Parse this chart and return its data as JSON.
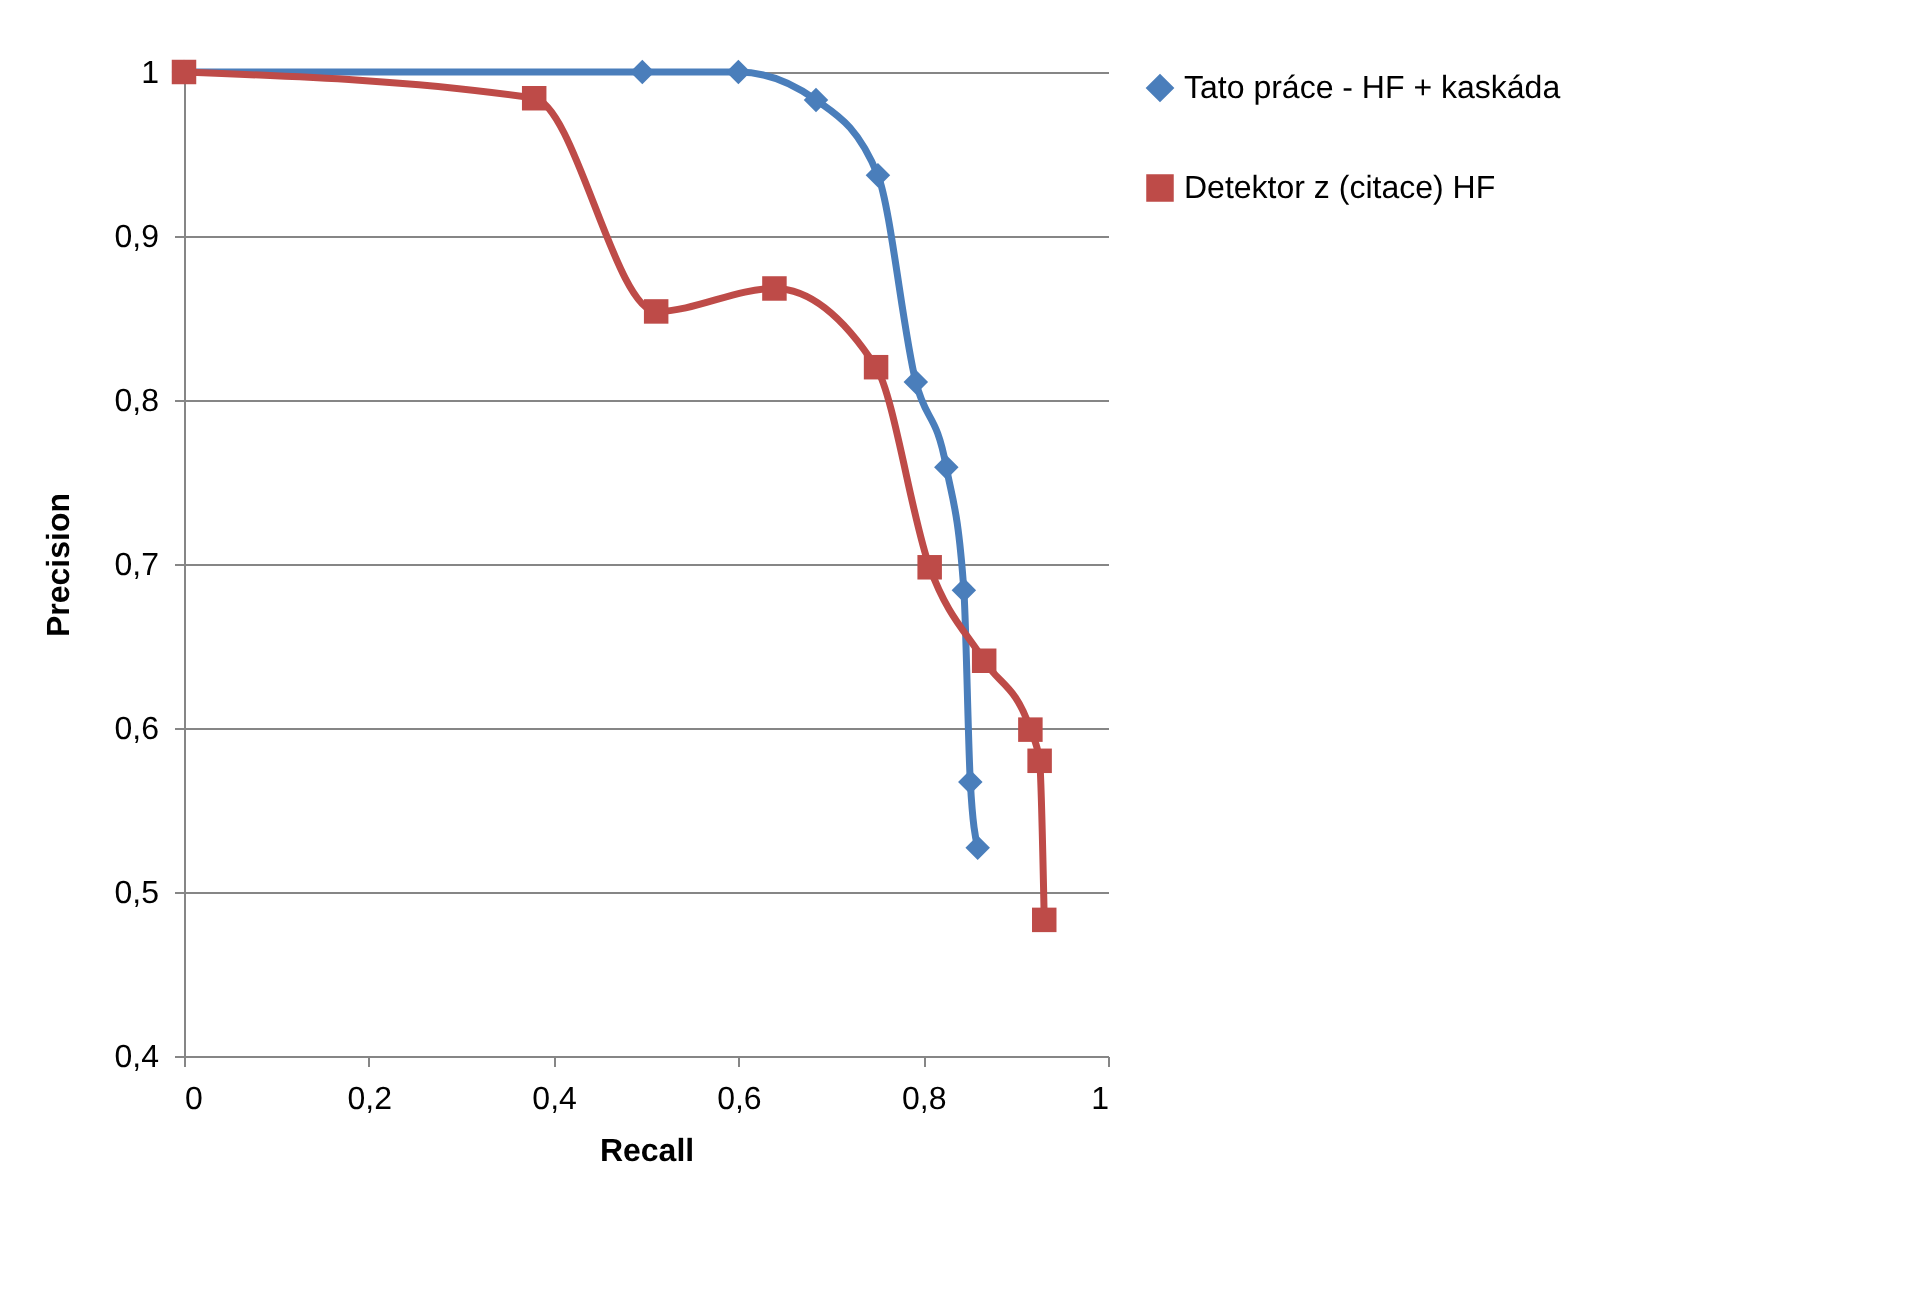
{
  "chart_data": {
    "type": "line",
    "xlabel": "Recall",
    "ylabel": "Precision",
    "xlim": [
      0,
      1
    ],
    "ylim": [
      0.4,
      1
    ],
    "xticks": [
      0,
      {
        "value": 0.2,
        "label": "0,2"
      },
      {
        "value": 0.4,
        "label": "0,4"
      },
      {
        "value": 0.6,
        "label": "0,6"
      },
      {
        "value": 0.8,
        "label": "0,8"
      },
      1
    ],
    "yticks": [
      {
        "value": 0.4,
        "label": "0,4"
      },
      {
        "value": 0.5,
        "label": "0,5"
      },
      {
        "value": 0.6,
        "label": "0,6"
      },
      {
        "value": 0.7,
        "label": "0,7"
      },
      {
        "value": 0.8,
        "label": "0,8"
      },
      {
        "value": 0.9,
        "label": "0,9"
      },
      1
    ],
    "grid": "y",
    "legend": "right",
    "line_style": "solid",
    "series": [
      {
        "name": "Tato práce - HF + kaskáda",
        "color": "#4a7ebb",
        "marker": "diamond",
        "x": [
          0,
          0.496,
          0.6,
          0.684,
          0.751,
          0.792,
          0.825,
          0.844,
          0.851,
          0.859
        ],
        "values": [
          1,
          1,
          1,
          0.983,
          0.937,
          0.811,
          0.759,
          0.684,
          0.567,
          0.527
        ]
      },
      {
        "name": "Detektor z (citace) HF",
        "color": "#be4b48",
        "marker": "square",
        "x": [
          0,
          0.379,
          0.511,
          0.639,
          0.749,
          0.807,
          0.866,
          0.916,
          0.926,
          0.931
        ],
        "values": [
          1,
          0.984,
          0.854,
          0.868,
          0.82,
          0.698,
          0.641,
          0.599,
          0.58,
          0.483
        ]
      }
    ]
  }
}
